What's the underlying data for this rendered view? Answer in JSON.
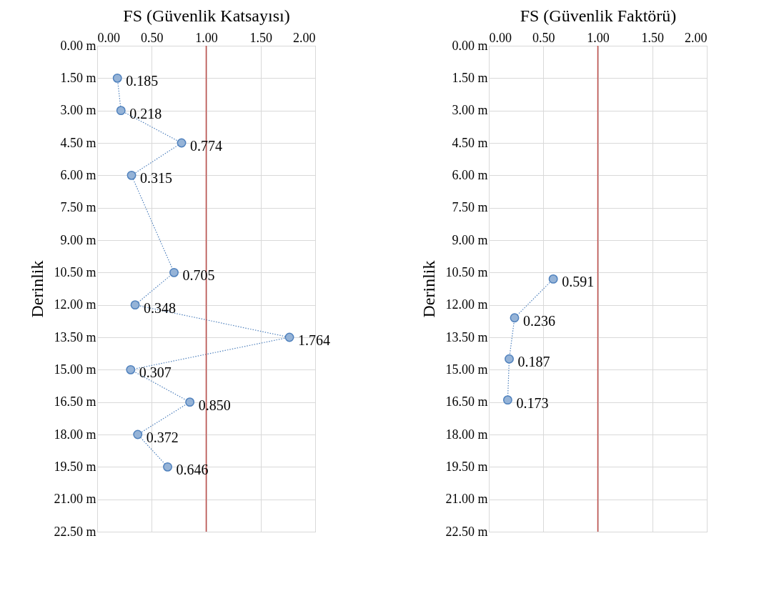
{
  "chart_data": [
    {
      "type": "line",
      "orientation": "horizontal",
      "xlabel": "FS (Güvenlik Katsayısı)",
      "ylabel": "Derinlik",
      "xlim": [
        0,
        2
      ],
      "xticks": [
        {
          "value": 0,
          "label": "0.00"
        },
        {
          "value": 0.5,
          "label": "0.50"
        },
        {
          "value": 1,
          "label": "1.00"
        },
        {
          "value": 1.5,
          "label": "1.50"
        },
        {
          "value": 2,
          "label": "2.00"
        }
      ],
      "ylim": [
        22.5,
        0
      ],
      "yticks": [
        {
          "value": 0,
          "label": "0.00 m"
        },
        {
          "value": 1.5,
          "label": "1.50 m"
        },
        {
          "value": 3,
          "label": "3.00 m"
        },
        {
          "value": 4.5,
          "label": "4.50 m"
        },
        {
          "value": 6,
          "label": "6.00 m"
        },
        {
          "value": 7.5,
          "label": "7.50 m"
        },
        {
          "value": 9,
          "label": "9.00 m"
        },
        {
          "value": 10.5,
          "label": "10.50 m"
        },
        {
          "value": 12,
          "label": "12.00 m"
        },
        {
          "value": 13.5,
          "label": "13.50 m"
        },
        {
          "value": 15,
          "label": "15.00 m"
        },
        {
          "value": 16.5,
          "label": "16.50 m"
        },
        {
          "value": 18,
          "label": "18.00 m"
        },
        {
          "value": 19.5,
          "label": "19.50 m"
        },
        {
          "value": 21,
          "label": "21.00 m"
        },
        {
          "value": 22.5,
          "label": "22.50 m"
        }
      ],
      "grid": true,
      "marker": "circle",
      "line_style": "dotted",
      "ref_lines": [
        {
          "axis": "x",
          "value": 1,
          "color": "#c0504d"
        }
      ],
      "series": [
        {
          "color": "#4f81bd",
          "x": [
            1.5,
            3,
            4.5,
            6,
            10.5,
            12,
            13.5,
            15,
            16.5,
            18,
            19.5
          ],
          "values": [
            0.185,
            0.218,
            0.774,
            0.315,
            0.705,
            0.348,
            1.764,
            0.307,
            0.85,
            0.372,
            0.646
          ],
          "value_labels": [
            "0.185",
            "0.218",
            "0.774",
            "0.315",
            "0.705",
            "0.348",
            "1.764",
            "0.307",
            "0.850",
            "0.372",
            "0.646"
          ]
        }
      ]
    },
    {
      "type": "line",
      "orientation": "horizontal",
      "xlabel": "FS (Güvenlik Faktörü)",
      "ylabel": "Derinlik",
      "xlim": [
        0,
        2
      ],
      "xticks": [
        {
          "value": 0,
          "label": "0.00"
        },
        {
          "value": 0.5,
          "label": "0.50"
        },
        {
          "value": 1,
          "label": "1.00"
        },
        {
          "value": 1.5,
          "label": "1.50"
        },
        {
          "value": 2,
          "label": "2.00"
        }
      ],
      "ylim": [
        22.5,
        0
      ],
      "yticks": [
        {
          "value": 0,
          "label": "0.00 m"
        },
        {
          "value": 1.5,
          "label": "1.50 m"
        },
        {
          "value": 3,
          "label": "3.00 m"
        },
        {
          "value": 4.5,
          "label": "4.50 m"
        },
        {
          "value": 6,
          "label": "6.00 m"
        },
        {
          "value": 7.5,
          "label": "7.50 m"
        },
        {
          "value": 9,
          "label": "9.00 m"
        },
        {
          "value": 10.5,
          "label": "10.50 m"
        },
        {
          "value": 12,
          "label": "12.00 m"
        },
        {
          "value": 13.5,
          "label": "13.50 m"
        },
        {
          "value": 15,
          "label": "15.00 m"
        },
        {
          "value": 16.5,
          "label": "16.50 m"
        },
        {
          "value": 18,
          "label": "18.00 m"
        },
        {
          "value": 19.5,
          "label": "19.50 m"
        },
        {
          "value": 21,
          "label": "21.00 m"
        },
        {
          "value": 22.5,
          "label": "22.50 m"
        }
      ],
      "grid": true,
      "marker": "circle",
      "line_style": "dotted",
      "ref_lines": [
        {
          "axis": "x",
          "value": 1,
          "color": "#c0504d"
        }
      ],
      "series": [
        {
          "color": "#4f81bd",
          "x": [
            10.8,
            12.6,
            14.5,
            16.4
          ],
          "values": [
            0.591,
            0.236,
            0.187,
            0.173
          ],
          "value_labels": [
            "0.591",
            "0.236",
            "0.187",
            "0.173"
          ]
        }
      ]
    }
  ]
}
